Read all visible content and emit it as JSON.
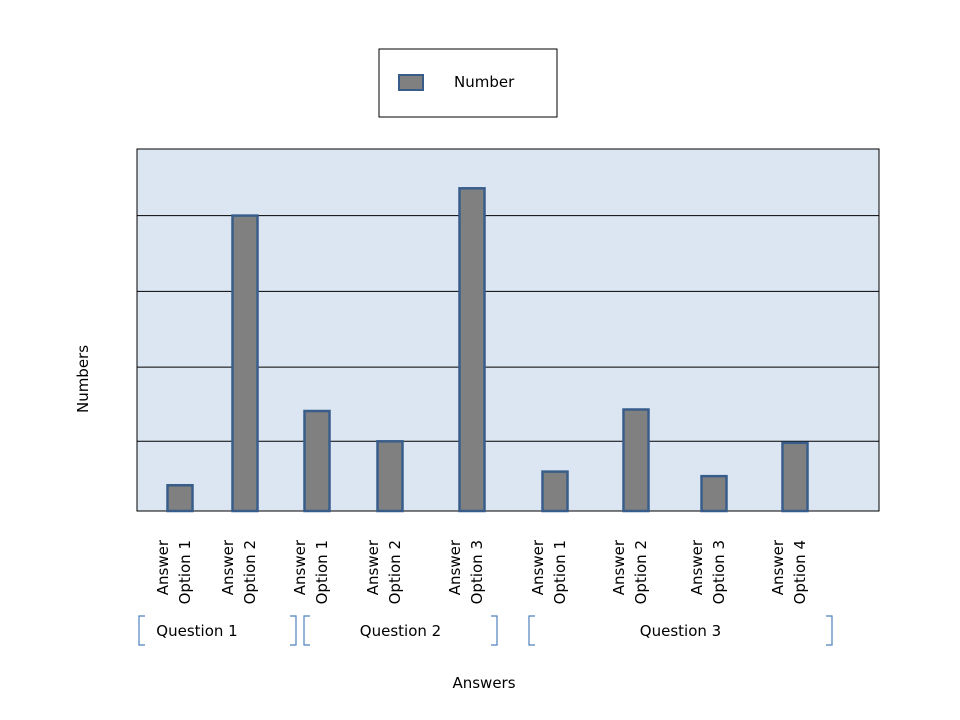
{
  "chart_data": {
    "type": "bar",
    "title": "",
    "xlabel": "Answers",
    "ylabel": "Numbers",
    "ylim": [
      0,
      20
    ],
    "gridlines": [
      4.6,
      9.5,
      14.5,
      19.5
    ],
    "legend": {
      "placement": "top-center",
      "entries": [
        "Number"
      ]
    },
    "categories": [
      [
        "Answer",
        "Option 1"
      ],
      [
        "Answer",
        "Option 2"
      ],
      [
        "Answer",
        "Option 1"
      ],
      [
        "Answer",
        "Option 2"
      ],
      [
        "Answer",
        "Option 3"
      ],
      [
        "Answer",
        "Option 1"
      ],
      [
        "Answer",
        "Option 2"
      ],
      [
        "Answer",
        "Option 3"
      ],
      [
        "Answer",
        "Option 4"
      ]
    ],
    "series": [
      {
        "name": "Number",
        "values": [
          1.7,
          19.5,
          6.6,
          4.6,
          21.3,
          2.6,
          6.7,
          2.3,
          4.5
        ]
      }
    ],
    "groups": [
      {
        "label": "Question 1",
        "members": [
          0,
          1
        ]
      },
      {
        "label": "Question 2",
        "members": [
          2,
          3,
          4
        ]
      },
      {
        "label": "Question 3",
        "members": [
          5,
          6,
          7,
          8
        ]
      }
    ],
    "colors": {
      "plot_bg": "#dce6f2",
      "bar_fill": "#808080",
      "bar_stroke": "#385d8a",
      "grid": "#000000",
      "bracket": "#4f81bd"
    }
  }
}
